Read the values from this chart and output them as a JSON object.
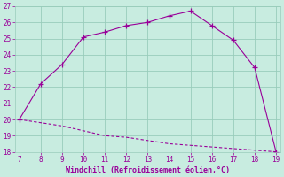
{
  "xlabel": "Windchill (Refroidissement éolien,°C)",
  "x": [
    7,
    8,
    9,
    10,
    11,
    12,
    13,
    14,
    15,
    16,
    17,
    18,
    19
  ],
  "y_upper": [
    20.0,
    22.2,
    23.4,
    25.1,
    25.4,
    25.8,
    26.0,
    26.4,
    26.7,
    25.8,
    24.9,
    23.2,
    18.0
  ],
  "y_lower": [
    20.0,
    19.8,
    19.6,
    19.3,
    19.0,
    18.9,
    18.7,
    18.5,
    18.4,
    18.3,
    18.2,
    18.1,
    18.0
  ],
  "line_color": "#990099",
  "bg_color": "#c8ece0",
  "grid_color": "#99ccbb",
  "ylim": [
    18,
    27
  ],
  "xlim": [
    7,
    19
  ],
  "yticks": [
    18,
    19,
    20,
    21,
    22,
    23,
    24,
    25,
    26,
    27
  ],
  "xticks": [
    7,
    8,
    9,
    10,
    11,
    12,
    13,
    14,
    15,
    16,
    17,
    18,
    19
  ]
}
